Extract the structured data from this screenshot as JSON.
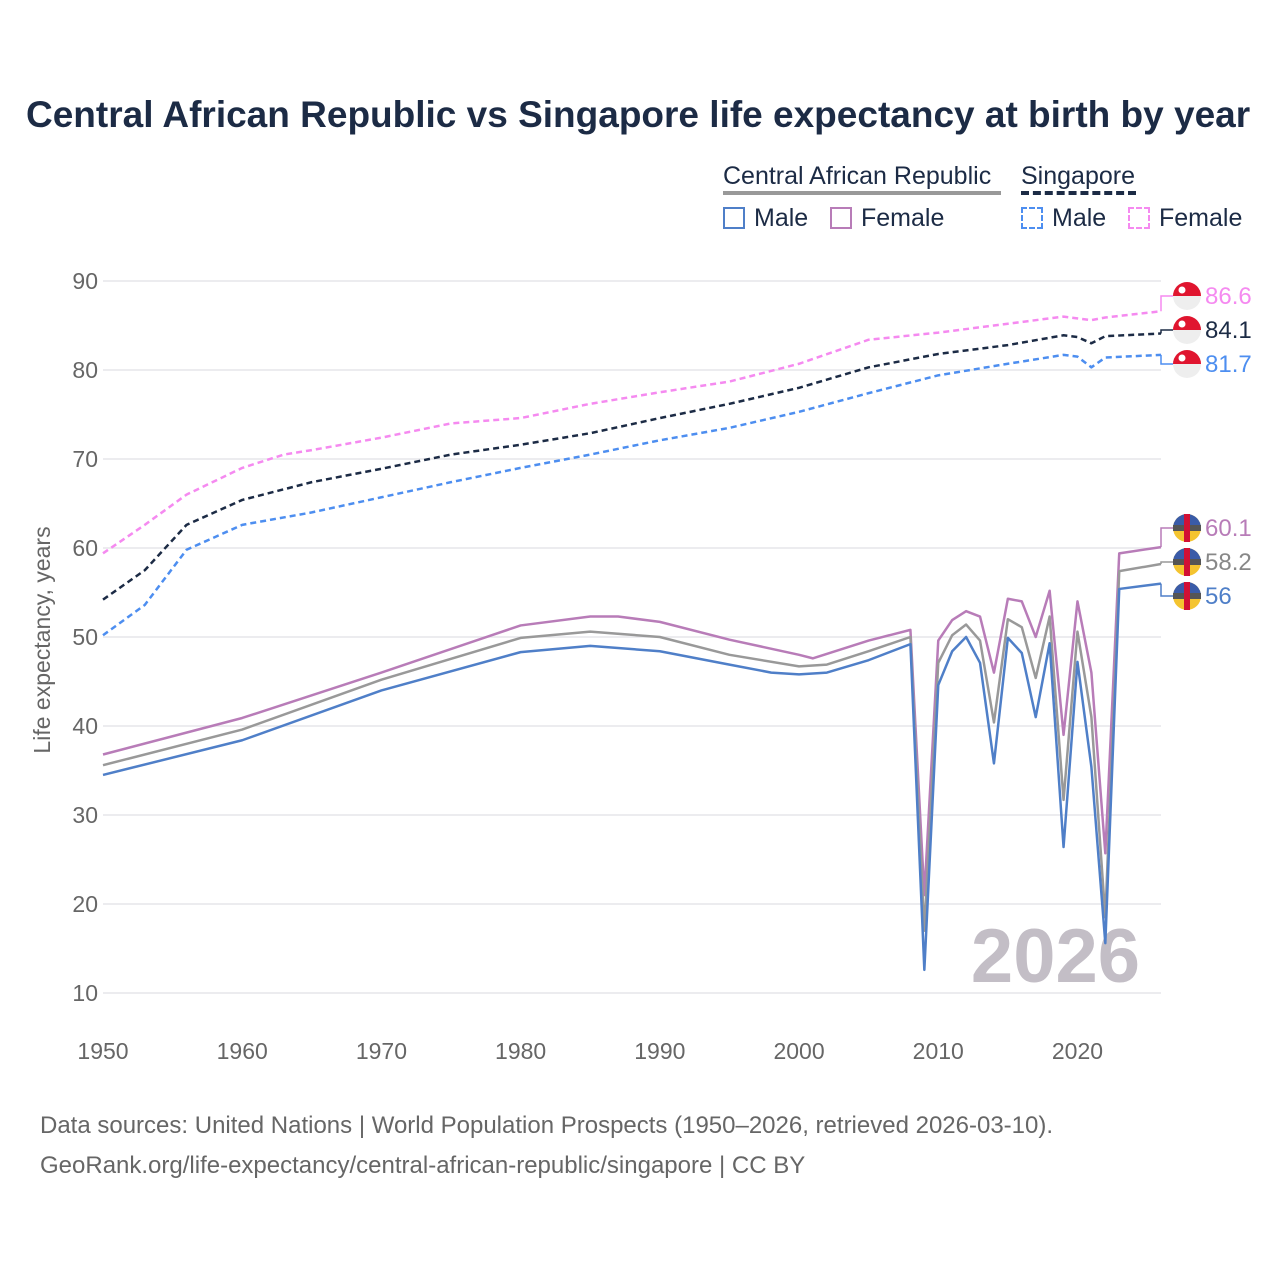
{
  "title": "Central African Republic vs Singapore life expectancy at birth by year",
  "legend": {
    "group1": "Central African Republic",
    "group2": "Singapore",
    "male": "Male",
    "female": "Female"
  },
  "source_line1": "Data sources: United Nations | World Population Prospects (1950–2026, retrieved 2026-03-10).",
  "source_line2": "GeoRank.org/life-expectancy/central-african-republic/singapore | CC BY",
  "chart_data": {
    "type": "line",
    "title": "Central African Republic vs Singapore life expectancy at birth by year",
    "xlabel": "",
    "ylabel": "Life expectancy, years",
    "xlim": [
      1950,
      2026
    ],
    "ylim": [
      10,
      90
    ],
    "xticks": [
      1950,
      1960,
      1970,
      1980,
      1990,
      2000,
      2010,
      2020
    ],
    "yticks": [
      10,
      20,
      30,
      40,
      50,
      60,
      70,
      80,
      90
    ],
    "year_label": "2026",
    "series": [
      {
        "name": "Singapore Female",
        "color": "#f58af0",
        "dash": true,
        "end_label": "86.6",
        "flag": "singapore",
        "points": [
          [
            1950,
            59.4
          ],
          [
            1953,
            62.6
          ],
          [
            1956,
            66
          ],
          [
            1960,
            69
          ],
          [
            1963,
            70.5
          ],
          [
            1965,
            71
          ],
          [
            1970,
            72.4
          ],
          [
            1975,
            74
          ],
          [
            1980,
            74.6
          ],
          [
            1985,
            76.2
          ],
          [
            1990,
            77.5
          ],
          [
            1995,
            78.7
          ],
          [
            2000,
            80.7
          ],
          [
            2005,
            83.4
          ],
          [
            2010,
            84.2
          ],
          [
            2015,
            85.2
          ],
          [
            2019,
            86
          ],
          [
            2021,
            85.6
          ],
          [
            2022,
            85.9
          ],
          [
            2026,
            86.6
          ]
        ]
      },
      {
        "name": "Singapore",
        "color": "#1c2b45",
        "dash": true,
        "end_label": "84.1",
        "flag": "singapore",
        "points": [
          [
            1950,
            54.2
          ],
          [
            1953,
            57.5
          ],
          [
            1956,
            62.6
          ],
          [
            1960,
            65.4
          ],
          [
            1965,
            67.4
          ],
          [
            1970,
            68.9
          ],
          [
            1975,
            70.5
          ],
          [
            1980,
            71.6
          ],
          [
            1985,
            72.9
          ],
          [
            1990,
            74.6
          ],
          [
            1995,
            76.2
          ],
          [
            2000,
            78
          ],
          [
            2005,
            80.3
          ],
          [
            2010,
            81.8
          ],
          [
            2015,
            82.8
          ],
          [
            2019,
            83.9
          ],
          [
            2020,
            83.7
          ],
          [
            2021,
            83
          ],
          [
            2022,
            83.8
          ],
          [
            2026,
            84.1
          ]
        ]
      },
      {
        "name": "Singapore Male",
        "color": "#4d8ef0",
        "dash": true,
        "end_label": "81.7",
        "flag": "singapore",
        "points": [
          [
            1950,
            50.2
          ],
          [
            1953,
            53.6
          ],
          [
            1956,
            59.8
          ],
          [
            1960,
            62.6
          ],
          [
            1965,
            64
          ],
          [
            1970,
            65.7
          ],
          [
            1975,
            67.4
          ],
          [
            1980,
            69
          ],
          [
            1985,
            70.5
          ],
          [
            1990,
            72.1
          ],
          [
            1995,
            73.5
          ],
          [
            2000,
            75.3
          ],
          [
            2005,
            77.4
          ],
          [
            2010,
            79.4
          ],
          [
            2015,
            80.7
          ],
          [
            2019,
            81.7
          ],
          [
            2020,
            81.5
          ],
          [
            2021,
            80.3
          ],
          [
            2022,
            81.4
          ],
          [
            2026,
            81.7
          ]
        ]
      },
      {
        "name": "Central African Republic Female",
        "color": "#b87cb8",
        "dash": false,
        "end_label": "60.1",
        "flag": "car",
        "points": [
          [
            1950,
            36.8
          ],
          [
            1960,
            40.9
          ],
          [
            1970,
            46
          ],
          [
            1980,
            51.3
          ],
          [
            1985,
            52.3
          ],
          [
            1987,
            52.3
          ],
          [
            1990,
            51.7
          ],
          [
            1995,
            49.7
          ],
          [
            2000,
            48
          ],
          [
            2001,
            47.6
          ],
          [
            2005,
            49.6
          ],
          [
            2008,
            50.8
          ],
          [
            2009,
            21
          ],
          [
            2010,
            49.6
          ],
          [
            2011,
            51.9
          ],
          [
            2012,
            52.9
          ],
          [
            2013,
            52.3
          ],
          [
            2014,
            46
          ],
          [
            2015,
            54.3
          ],
          [
            2016,
            54
          ],
          [
            2017,
            50
          ],
          [
            2018,
            55.2
          ],
          [
            2019,
            39
          ],
          [
            2020,
            54
          ],
          [
            2021,
            46
          ],
          [
            2022,
            25.7
          ],
          [
            2023,
            59.4
          ],
          [
            2026,
            60.1
          ]
        ]
      },
      {
        "name": "Central African Republic",
        "color": "#999999",
        "dash": false,
        "end_label": "58.2",
        "flag": "car",
        "points": [
          [
            1950,
            35.6
          ],
          [
            1960,
            39.6
          ],
          [
            1970,
            45.2
          ],
          [
            1980,
            49.9
          ],
          [
            1985,
            50.6
          ],
          [
            1990,
            50
          ],
          [
            1995,
            48
          ],
          [
            2000,
            46.7
          ],
          [
            2002,
            46.9
          ],
          [
            2005,
            48.4
          ],
          [
            2008,
            50
          ],
          [
            2009,
            17
          ],
          [
            2010,
            47.1
          ],
          [
            2011,
            50.2
          ],
          [
            2012,
            51.4
          ],
          [
            2013,
            49.6
          ],
          [
            2014,
            40.4
          ],
          [
            2015,
            52
          ],
          [
            2016,
            51.1
          ],
          [
            2017,
            45.4
          ],
          [
            2018,
            52.3
          ],
          [
            2019,
            31.7
          ],
          [
            2020,
            50.6
          ],
          [
            2021,
            41
          ],
          [
            2022,
            18.5
          ],
          [
            2023,
            57.4
          ],
          [
            2026,
            58.2
          ]
        ]
      },
      {
        "name": "Central African Republic Male",
        "color": "#4f7fc8",
        "dash": false,
        "end_label": "56",
        "flag": "car",
        "points": [
          [
            1950,
            34.5
          ],
          [
            1960,
            38.4
          ],
          [
            1970,
            44
          ],
          [
            1980,
            48.3
          ],
          [
            1985,
            49
          ],
          [
            1990,
            48.4
          ],
          [
            1995,
            46.9
          ],
          [
            1998,
            46
          ],
          [
            2000,
            45.8
          ],
          [
            2002,
            46
          ],
          [
            2005,
            47.4
          ],
          [
            2008,
            49.2
          ],
          [
            2009,
            12.6
          ],
          [
            2010,
            44.6
          ],
          [
            2011,
            48.4
          ],
          [
            2012,
            50
          ],
          [
            2013,
            47.1
          ],
          [
            2014,
            35.8
          ],
          [
            2015,
            49.9
          ],
          [
            2016,
            48.2
          ],
          [
            2017,
            41
          ],
          [
            2018,
            49.3
          ],
          [
            2019,
            26.4
          ],
          [
            2020,
            47.2
          ],
          [
            2021,
            35.4
          ],
          [
            2022,
            15.6
          ],
          [
            2023,
            55.4
          ],
          [
            2026,
            56
          ]
        ]
      }
    ]
  }
}
